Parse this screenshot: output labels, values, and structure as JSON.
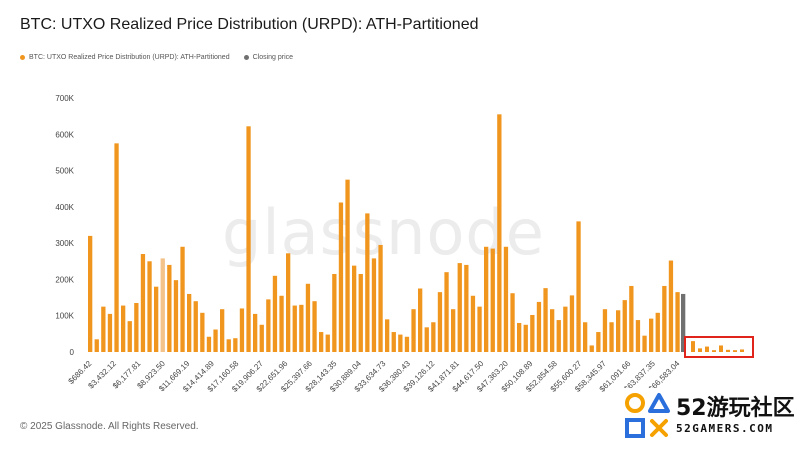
{
  "header": {
    "title": "BTC: UTXO Realized Price Distribution (URPD): ATH-Partitioned"
  },
  "legend": [
    {
      "label": "BTC: UTXO Realized Price Distribution (URPD): ATH-Partitioned",
      "color": "#f0961e"
    },
    {
      "label": "Closing price",
      "color": "#707070"
    }
  ],
  "watermark": "glassnode",
  "footer": "© 2025 Glassnode. All Rights Reserved.",
  "site_badge": {
    "name": "52游玩社区",
    "domain": "52GAMERS.COM"
  },
  "colors": {
    "bar": "#f0961e",
    "bar_light": "#f3c38a",
    "closing": "#707070",
    "highlight_box": "#e0241b"
  },
  "chart_data": {
    "type": "bar",
    "title": "BTC: UTXO Realized Price Distribution (URPD): ATH-Partitioned",
    "xlabel": "",
    "ylabel": "",
    "ylim": [
      0,
      700000
    ],
    "yticks": [
      0,
      100000,
      200000,
      300000,
      400000,
      500000,
      600000,
      700000
    ],
    "ytick_labels": [
      "0",
      "100K",
      "200K",
      "300K",
      "400K",
      "500K",
      "600K",
      "700K"
    ],
    "x_tick_labels": [
      "$686.42",
      "$3,432.12",
      "$6,177.81",
      "$8,923.50",
      "$11,669.19",
      "$14,414.89",
      "$17,160.58",
      "$19,906.27",
      "$22,651.96",
      "$25,397.66",
      "$28,143.35",
      "$30,889.04",
      "$33,634.73",
      "$36,380.43",
      "$39,126.12",
      "$41,871.81",
      "$44,617.50",
      "$47,363.20",
      "$50,108.89",
      "$52,854.58",
      "$55,600.27",
      "$58,345.97",
      "$61,091.66",
      "$63,837.35",
      "$66,583.04"
    ],
    "grid": false,
    "legend_position": "top-left",
    "values": [
      320000,
      35000,
      125000,
      105000,
      575000,
      128000,
      85000,
      135000,
      270000,
      250000,
      180000,
      258000,
      240000,
      198000,
      290000,
      160000,
      140000,
      108000,
      42000,
      62000,
      118000,
      35000,
      38000,
      120000,
      622000,
      105000,
      75000,
      145000,
      210000,
      155000,
      272000,
      128000,
      130000,
      188000,
      140000,
      55000,
      48000,
      215000,
      412000,
      475000,
      238000,
      215000,
      382000,
      258000,
      295000,
      90000,
      55000,
      48000,
      42000,
      118000,
      175000,
      68000,
      82000,
      165000,
      220000,
      118000,
      245000,
      240000,
      155000,
      125000,
      290000,
      285000,
      655000,
      290000,
      162000,
      80000,
      75000,
      102000,
      138000,
      176000,
      118000,
      88000,
      125000,
      156000,
      360000,
      82000,
      18000,
      55000,
      118000,
      82000,
      115000,
      143000,
      182000,
      88000,
      45000,
      92000,
      108000,
      182000,
      252000,
      165000
    ],
    "highlight_index": 11,
    "closing_price_value": 160000,
    "post_ath_values": [
      30000,
      10000,
      15000,
      5000,
      18000,
      6000,
      5000,
      7000
    ]
  }
}
